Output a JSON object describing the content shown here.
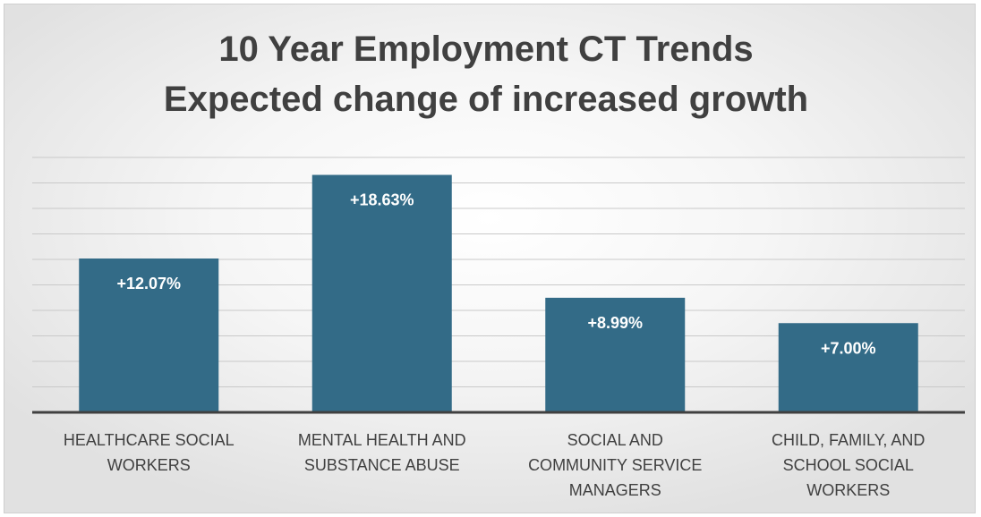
{
  "chart_data": {
    "type": "bar",
    "title": [
      "10 Year Employment CT Trends",
      "Expected change of increased growth"
    ],
    "categories": [
      [
        "HEALTHCARE SOCIAL",
        "WORKERS"
      ],
      [
        "MENTAL HEALTH AND",
        "SUBSTANCE ABUSE"
      ],
      [
        "SOCIAL AND",
        "COMMUNITY SERVICE",
        "MANAGERS"
      ],
      [
        "CHILD, FAMILY, AND",
        "SCHOOL SOCIAL",
        "WORKERS"
      ]
    ],
    "values": [
      12.07,
      18.63,
      8.99,
      7.0
    ],
    "data_labels": [
      "+12.07%",
      "+18.63%",
      "+8.99%",
      "+7.00%"
    ],
    "xlabel": "",
    "ylabel": "",
    "ylim": [
      0,
      20
    ],
    "grid": true,
    "gridlines": 10,
    "colors": {
      "bar": "#336b87",
      "data_label": "#ffffff",
      "text": "#404040"
    }
  }
}
